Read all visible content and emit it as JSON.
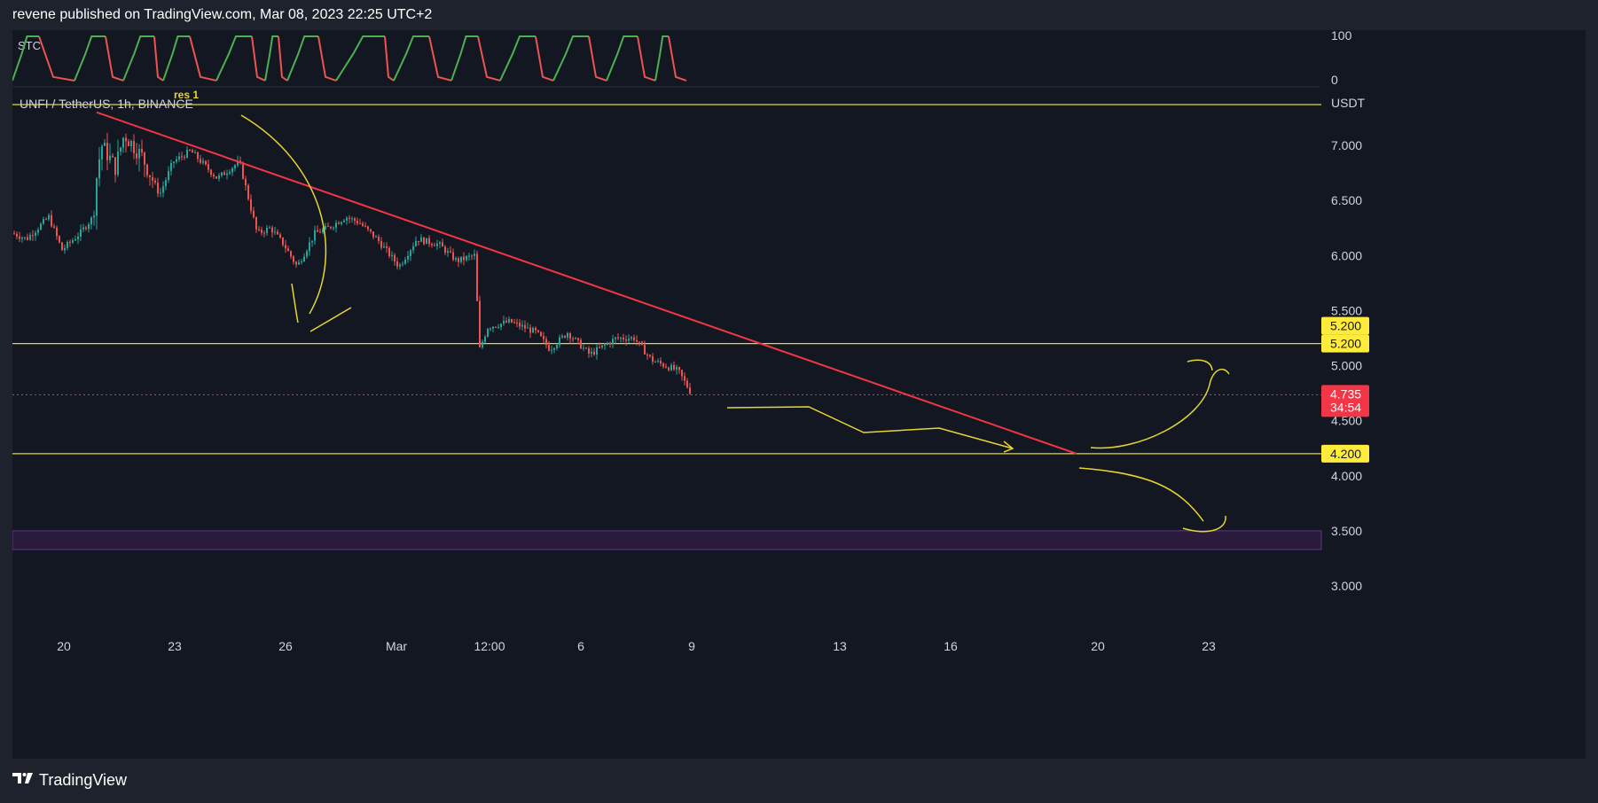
{
  "header": {
    "publish_text": "revene published on TradingView.com, Mar 08, 2023 22:25 UTC+2"
  },
  "footer": {
    "brand": "TradingView",
    "logo_icon": "tradingview-logo-icon"
  },
  "indicator": {
    "name": "STC",
    "scale_labels": [
      "100",
      "0"
    ]
  },
  "symbol": {
    "label": "UNFI / TetherUS, 1h, BINANCE",
    "currency": "USDT",
    "last_price": "4.735",
    "countdown": "34:54"
  },
  "annotations": {
    "res_label": "res 1"
  },
  "colors": {
    "background": "#131722",
    "frame": "#1e222d",
    "up_candle": "#26a69a",
    "down_candle": "#ef5350",
    "trendline": "#f23645",
    "level_line": "#e6d62e",
    "zone": "#2a1b3d",
    "stc_up": "#4caf50",
    "stc_down": "#ef5350"
  },
  "chart_data": {
    "type": "candlestick",
    "timeframe": "1h",
    "y_axis": {
      "ticks": [
        "7.000",
        "6.500",
        "6.000",
        "5.500",
        "5.000",
        "4.500",
        "4.000",
        "3.500",
        "3.000"
      ],
      "range": [
        2.7,
        7.6
      ]
    },
    "x_axis": {
      "ticks": [
        "20",
        "23",
        "26",
        "Mar",
        "12:00",
        "6",
        "9",
        "13",
        "16",
        "20",
        "23"
      ]
    },
    "price_path": [
      [
        0,
        6.2
      ],
      [
        15,
        6.15
      ],
      [
        40,
        6.35
      ],
      [
        55,
        6.05
      ],
      [
        75,
        6.2
      ],
      [
        90,
        6.35
      ],
      [
        95,
        6.8
      ],
      [
        100,
        7.0
      ],
      [
        115,
        6.8
      ],
      [
        125,
        7.1
      ],
      [
        145,
        6.9
      ],
      [
        165,
        6.55
      ],
      [
        180,
        6.85
      ],
      [
        200,
        6.95
      ],
      [
        230,
        6.7
      ],
      [
        255,
        6.85
      ],
      [
        275,
        6.2
      ],
      [
        290,
        6.25
      ],
      [
        305,
        6.1
      ],
      [
        320,
        5.9
      ],
      [
        340,
        6.2
      ],
      [
        355,
        6.25
      ],
      [
        375,
        6.35
      ],
      [
        390,
        6.3
      ],
      [
        410,
        6.15
      ],
      [
        435,
        5.9
      ],
      [
        455,
        6.15
      ],
      [
        480,
        6.1
      ],
      [
        500,
        5.95
      ],
      [
        520,
        6.0
      ],
      [
        526,
        5.15
      ],
      [
        535,
        5.35
      ],
      [
        560,
        5.4
      ],
      [
        590,
        5.3
      ],
      [
        605,
        5.15
      ],
      [
        625,
        5.3
      ],
      [
        650,
        5.1
      ],
      [
        680,
        5.25
      ],
      [
        700,
        5.25
      ],
      [
        720,
        5.05
      ],
      [
        750,
        4.95
      ],
      [
        765,
        4.74
      ]
    ],
    "levels": [
      {
        "label": "5.200",
        "value": 5.2
      },
      {
        "label": "4.200",
        "value": 4.2
      }
    ],
    "top_level": 7.37,
    "zone": [
      3.33,
      3.5
    ],
    "current_price_marker": 4.735,
    "extra_price_label": "5.200",
    "trendline": [
      [
        95,
        7.3
      ],
      [
        1200,
        4.2
      ]
    ],
    "indicator_series_range": [
      0,
      100
    ]
  }
}
